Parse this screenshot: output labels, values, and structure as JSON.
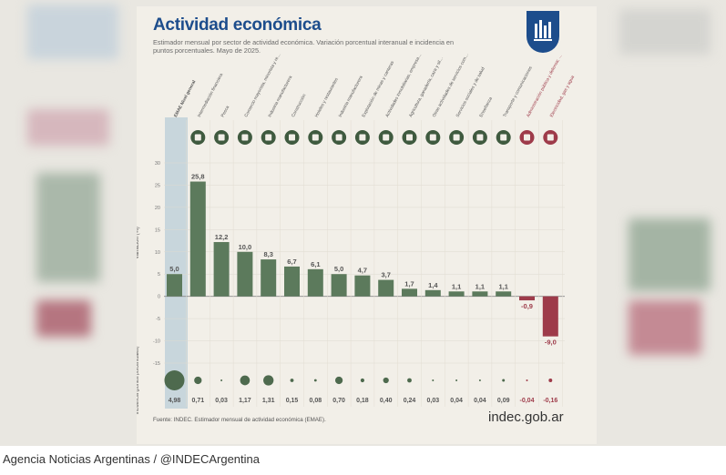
{
  "card": {
    "title": "Actividad económica",
    "subtitle": "Estimador mensual por sector de actividad económica. Variación porcentual interanual e incidencia en puntos porcentuales. Mayo de 2025.",
    "footnote": "Fuente: INDEC. Estimador mensual de actividad económica (EMAE).",
    "brand": "indec.gob.ar"
  },
  "caption": "Agencia Noticias Argentinas / @INDECArgentina",
  "colors": {
    "positive": "#5c7a5c",
    "negative": "#9e3b4a",
    "highlight": "#c8d6dc",
    "brand_blue": "#1d4d8c",
    "card_bg": "#f2efe8"
  },
  "chart_data": {
    "type": "bar",
    "ylabel": "Variación (%)",
    "incidence_label": "Incidencia (puntos porcentuales)",
    "ylim": [
      -15,
      30
    ],
    "yticks": [
      -15,
      -10,
      -5,
      0,
      5,
      10,
      15,
      20,
      25,
      30
    ],
    "grid": true,
    "categories": [
      {
        "name": "EMAE Nivel general",
        "icon": "none",
        "value": 5.0,
        "value_label": "5,0",
        "incidence": 4.98,
        "incidence_label": "4,98",
        "highlight": true
      },
      {
        "name": "Intermediación financiera",
        "icon": "bank-icon",
        "value": 25.8,
        "value_label": "25,8",
        "incidence": 0.71,
        "incidence_label": "0,71"
      },
      {
        "name": "Pesca",
        "icon": "fish-icon",
        "value": 12.2,
        "value_label": "12,2",
        "incidence": 0.03,
        "incidence_label": "0,03"
      },
      {
        "name": "Comercio mayorista, minorista y reparaciones",
        "icon": "cart-icon",
        "value": 10.0,
        "value_label": "10,0",
        "incidence": 1.17,
        "incidence_label": "1,17"
      },
      {
        "name": "Industria manufacturera",
        "icon": "factory-icon",
        "value": 8.3,
        "value_label": "8,3",
        "incidence": 1.31,
        "incidence_label": "1,31"
      },
      {
        "name": "Construcción",
        "icon": "crane-icon",
        "value": 6.7,
        "value_label": "6,7",
        "incidence": 0.15,
        "incidence_label": "0,15"
      },
      {
        "name": "Hoteles y restaurantes",
        "icon": "bed-icon",
        "value": 6.1,
        "value_label": "6,1",
        "incidence": 0.08,
        "incidence_label": "0,08"
      },
      {
        "name": "Industria manufacturera",
        "icon": "gear-icon",
        "value": 5.0,
        "value_label": "5,0",
        "incidence": 0.7,
        "incidence_label": "0,70"
      },
      {
        "name": "Explotación de minas y canteras",
        "icon": "mine-icon",
        "value": 4.7,
        "value_label": "4,7",
        "incidence": 0.18,
        "incidence_label": "0,18"
      },
      {
        "name": "Actividades inmobiliarias, empresariales y de alquiler",
        "icon": "house-icon",
        "value": 3.7,
        "value_label": "3,7",
        "incidence": 0.4,
        "incidence_label": "0,40"
      },
      {
        "name": "Agricultura, ganadería, caza y silvicultura",
        "icon": "tractor-icon",
        "value": 1.7,
        "value_label": "1,7",
        "incidence": 0.24,
        "incidence_label": "0,24"
      },
      {
        "name": "Otras actividades de servicios comunitarios, sociales y personales",
        "icon": "people-icon",
        "value": 1.4,
        "value_label": "1,4",
        "incidence": 0.03,
        "incidence_label": "0,03"
      },
      {
        "name": "Servicios sociales y de salud",
        "icon": "health-icon",
        "value": 1.1,
        "value_label": "1,1",
        "incidence": 0.04,
        "incidence_label": "0,04"
      },
      {
        "name": "Enseñanza",
        "icon": "book-icon",
        "value": 1.1,
        "value_label": "1,1",
        "incidence": 0.04,
        "incidence_label": "0,04"
      },
      {
        "name": "Transporte y comunicaciones",
        "icon": "bus-icon",
        "value": 1.1,
        "value_label": "1,1",
        "incidence": 0.09,
        "incidence_label": "0,09"
      },
      {
        "name": "Administración pública y defensa; planes de seguridad social de afiliación obligatoria",
        "icon": "building-icon",
        "value": -0.9,
        "value_label": "-0,9",
        "incidence": -0.04,
        "incidence_label": "-0,04"
      },
      {
        "name": "Electricidad, gas y agua",
        "icon": "bolt-icon",
        "value": -9.0,
        "value_label": "-9,0",
        "incidence": -0.16,
        "incidence_label": "-0,16"
      }
    ]
  }
}
